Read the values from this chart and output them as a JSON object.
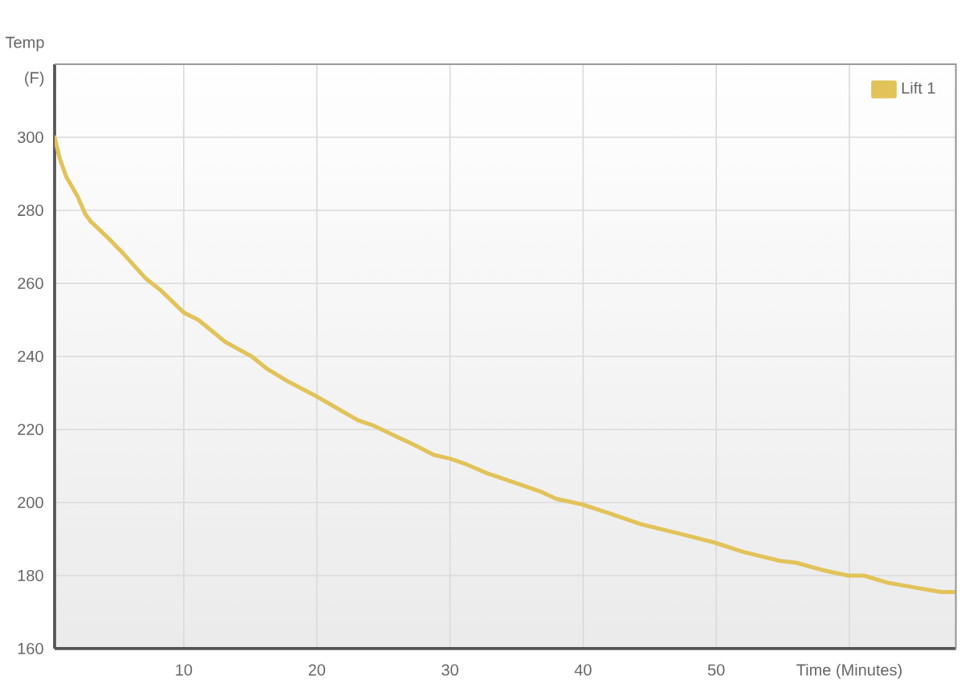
{
  "chart_data": {
    "type": "line",
    "xlabel": "Time (Minutes)",
    "ylabel": "Temp (F)",
    "x": [
      0.3,
      0.7,
      1.2,
      2.0,
      2.6,
      3.0,
      4.3,
      5.5,
      7.1,
      8.3,
      10,
      11.1,
      13.1,
      15.1,
      16.3,
      17.9,
      20,
      21.9,
      23.1,
      24.3,
      26,
      27.2,
      28.8,
      30,
      31.2,
      32.8,
      34.4,
      36.8,
      38,
      39.9,
      42,
      44.4,
      47.2,
      49.9,
      52,
      54.8,
      56,
      58,
      59.9,
      61.1,
      62.9,
      64.5,
      65.3,
      66.9,
      68
    ],
    "series": [
      {
        "name": "Lift 1",
        "color": "#e2c35a",
        "values": [
          300,
          294,
          289,
          284,
          279,
          277,
          272.5,
          268,
          261.5,
          258,
          252,
          250,
          244,
          240,
          236.5,
          233,
          229,
          225,
          222.5,
          221,
          218,
          216,
          213,
          212,
          210.5,
          208,
          206,
          203,
          201,
          199.5,
          197,
          194,
          191.5,
          189,
          186.5,
          184,
          183.5,
          181.5,
          180,
          180,
          178,
          177,
          176.5,
          175.5,
          175.5
        ]
      }
    ],
    "xlim": [
      0.3,
      68
    ],
    "ylim": [
      160,
      320
    ],
    "xticks": [
      10,
      20,
      30,
      40,
      50,
      {
        "value": 60,
        "label": null
      }
    ],
    "yticks": [
      160,
      180,
      200,
      220,
      240,
      260,
      280,
      300
    ],
    "grid": true,
    "legend": "top right",
    "marker": "none",
    "line_style": "solid"
  }
}
